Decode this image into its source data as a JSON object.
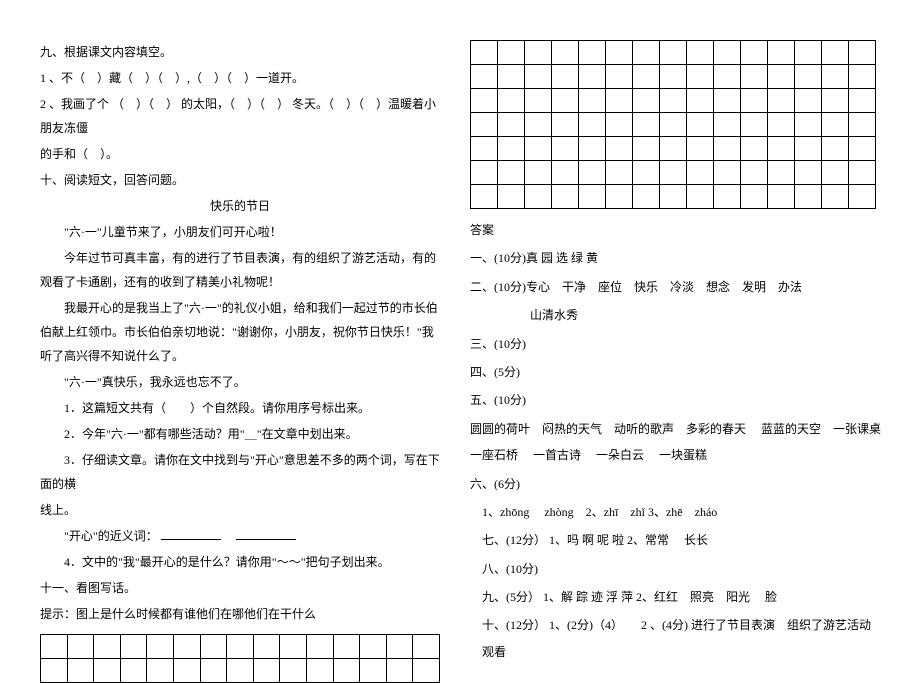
{
  "left": {
    "q9_title": "九、根据课文内容填空。",
    "q9_1": "1 、不（　）藏（　）（　）,（　）（　）一道开。",
    "q9_2": "2 、我画了个 （　）（　） 的太阳，（　）（　） 冬天。（　）（　）温暖着小朋友冻僵",
    "q9_2b": "的手和（　）。",
    "q10_title": "十、阅读短文，回答问题。",
    "p_title": "快乐的节日",
    "p1": "\"六·一\"儿童节来了，小朋友们可开心啦！",
    "p2": "今年过节可真丰富，有的进行了节目表演，有的组织了游艺活动，有的观看了卡通剧，还有的收到了精美小礼物呢！",
    "p3a": "我最开心的是我当上了\"六·一\"的礼仪小姐，给和我们一起过节的市长伯伯献上红领巾。市长伯伯亲切地说：\"谢谢你，小朋友，祝你节日快乐！\"我听了高兴得不知说什么了。",
    "p4": "\"六·一\"真快乐，我永远也忘不了。",
    "q1": "1．这篇短文共有（　　）个自然段。请你用序号标出来。",
    "q2": "2．今年\"六·一\"都有哪些活动？用\"＿\"在文章中划出来。",
    "q3": "3．仔细读文章。请你在文中找到与\"开心\"意思差不多的两个词，写在下面的横",
    "q3b": "线上。",
    "q3c_label": "\"开心\"的近义词：",
    "q4": "4．文中的\"我\"最开心的是什么？请你用\"～～\"把句子划出来。",
    "q11_title": "十一、看图写话。",
    "q11_hint": "提示：图上是什么时候都有谁他们在哪他们在干什么",
    "grid_left": {
      "rows": 2,
      "cols": 15
    }
  },
  "right": {
    "grid_right": {
      "rows": 7,
      "cols": 15
    },
    "ans_title": "答案",
    "a1": "一、(10分)真  园  选  绿  黄",
    "a2": "二、(10分)专心　干净　座位　快乐　冷淡　想念　发明　办法",
    "a2b": "山清水秀",
    "a3": "三、(10分)",
    "a4": "四、(5分)",
    "a5": "五、(10分)",
    "a5b": "圆圆的荷叶　闷热的天气　动听的歌声　多彩的春天　 蓝蓝的天空　一张课桌　 一座石桥　 一首古诗　 一朵白云　 一块蛋糕",
    "a6": "六、(6分)",
    "a6_1": "1、zhōng　 zhòng　2、zhī　zhǐ 3、zhē　zháo",
    "a7": "七、(12分） 1、吗  啊  呢  啦  2、常常　 长长",
    "a8": "八、(10分)",
    "a9": "九、(5分） 1、解  踪  迹 浮 萍   2、红红　照亮　阳光　 脸",
    "a10": "十、(12分） 1、(2分)（4）　　2 、(4分) 进行了节目表演　组织了游艺活动　观看"
  },
  "colors": {
    "text": "#000000",
    "bg": "#ffffff",
    "border": "#000000"
  }
}
